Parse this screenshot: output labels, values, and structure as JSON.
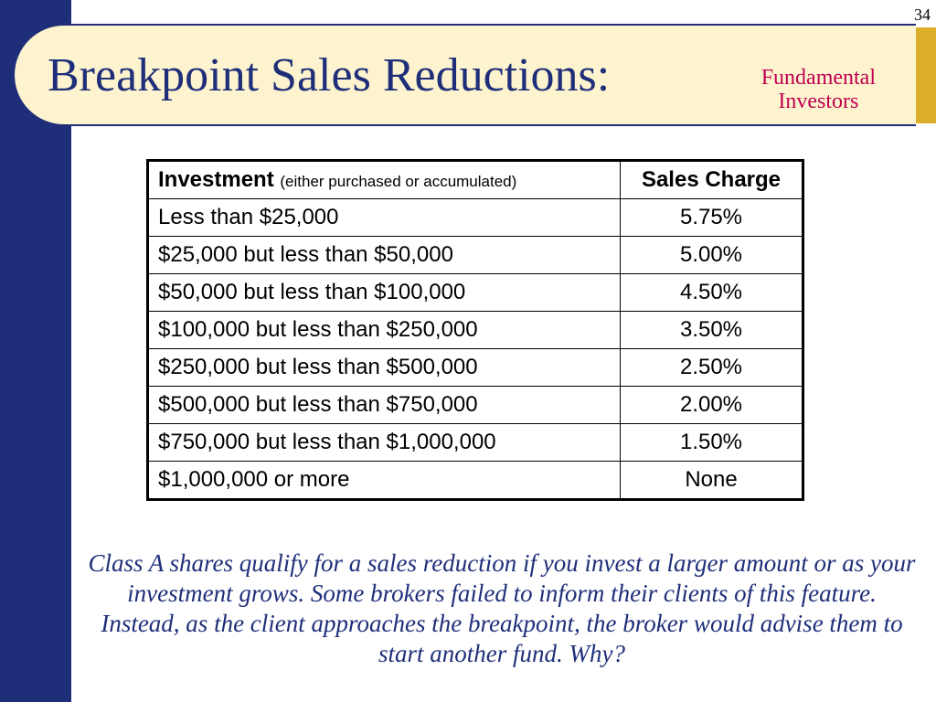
{
  "page_number": "34",
  "title": "Breakpoint Sales Reductions:",
  "subtitle_line1": "Fundamental",
  "subtitle_line2": "Investors",
  "table": {
    "header_invest_main": "Investment ",
    "header_invest_sub": "(either purchased or accumulated)",
    "header_charge": "Sales Charge",
    "rows": [
      {
        "invest": "Less than $25,000",
        "charge": "5.75%"
      },
      {
        "invest": "$25,000 but less than $50,000",
        "charge": "5.00%"
      },
      {
        "invest": "$50,000 but less than $100,000",
        "charge": "4.50%"
      },
      {
        "invest": "$100,000 but less than $250,000",
        "charge": "3.50%"
      },
      {
        "invest": "$250,000 but less than $500,000",
        "charge": "2.50%"
      },
      {
        "invest": "$500,000 but less than $750,000",
        "charge": "2.00%"
      },
      {
        "invest": "$750,000 but less than $1,000,000",
        "charge": "1.50%"
      },
      {
        "invest": "$1,000,000 or more",
        "charge": "None"
      }
    ]
  },
  "body_text": "Class A shares qualify for a sales reduction if you invest a larger amount or as your investment grows. Some brokers failed to inform their clients of this feature.  Instead, as the client approaches the breakpoint, the broker would advise them to start another fund.  Why?",
  "colors": {
    "navy": "#1f2e79",
    "cream": "#fdf4cf",
    "gold": "#dcae2a",
    "magenta": "#c00050"
  }
}
